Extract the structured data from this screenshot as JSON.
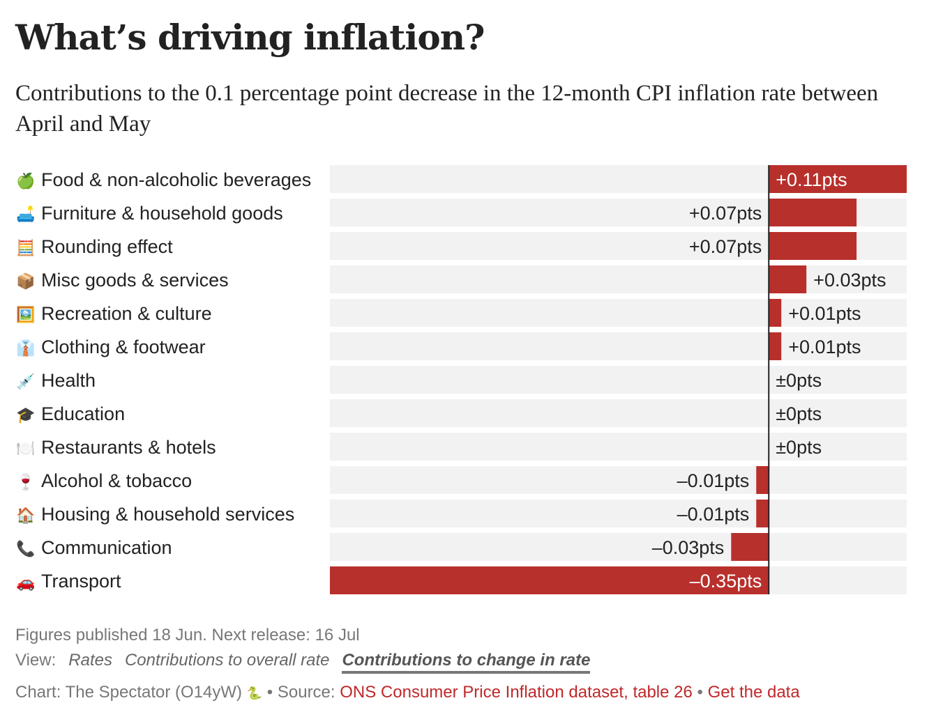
{
  "title": "What’s driving inflation?",
  "subtitle": "Contributions to the 0.1 percentage point decrease in the 12-month CPI inflation rate between April and May",
  "colors": {
    "bar": "#b8302c",
    "track": "#f2f2f2",
    "axis": "#222222"
  },
  "chart_data": {
    "type": "bar",
    "orientation": "horizontal",
    "xlim": [
      -0.35,
      0.11
    ],
    "grid": false,
    "categories": [
      "Food & non-alcoholic beverages",
      "Furniture & household goods",
      "Rounding effect",
      "Misc goods & services",
      "Recreation & culture",
      "Clothing & footwear",
      "Health",
      "Education",
      "Restaurants & hotels",
      "Alcohol & tobacco",
      "Housing & household services",
      "Communication",
      "Transport"
    ],
    "icons": [
      "🍏",
      "🛋️",
      "🧮",
      "📦",
      "🖼️",
      "👔",
      "💉",
      "🎓",
      "🍽️",
      "🍷",
      "🏠",
      "📞",
      "🚗"
    ],
    "values": [
      0.11,
      0.07,
      0.07,
      0.03,
      0.01,
      0.01,
      0,
      0,
      0,
      -0.01,
      -0.01,
      -0.03,
      -0.35
    ],
    "data_labels": [
      "+0.11pts",
      "+0.07pts",
      "+0.07pts",
      "+0.03pts",
      "+0.01pts",
      "+0.01pts",
      "±0pts",
      "±0pts",
      "±0pts",
      "–0.01pts",
      "–0.01pts",
      "–0.03pts",
      "–0.35pts"
    ]
  },
  "footer": {
    "published": "Figures published 18 Jun. Next release: 16 Jul",
    "view_label": "View:",
    "view_options": [
      "Rates",
      "Contributions to overall rate",
      "Contributions to change in rate"
    ],
    "active_view": "Contributions to change in rate",
    "credit": "Chart: The Spectator (O14yW)",
    "credit_icon": "snake-icon",
    "separator": "•",
    "source_label": "Source:",
    "source_link": "ONS Consumer Price Inflation dataset, table 26",
    "data_link": "Get the data"
  }
}
